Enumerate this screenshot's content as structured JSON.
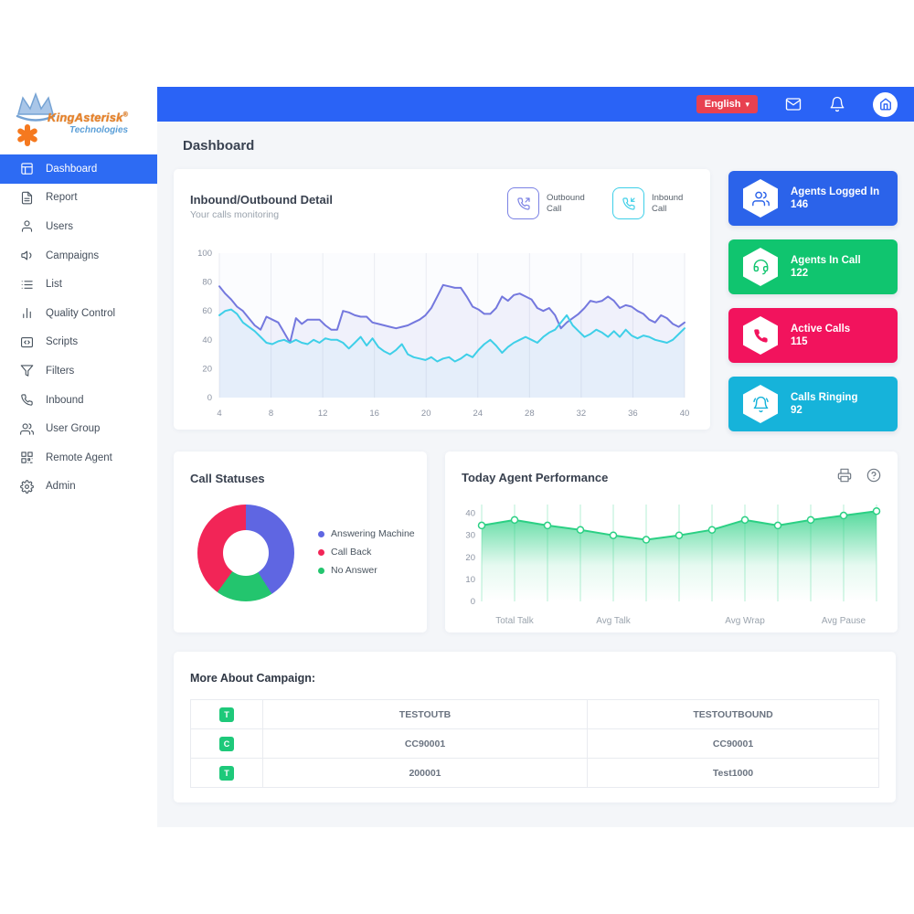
{
  "brand": {
    "name": "KingAsterisk",
    "registered": "®",
    "tagline": "Technologies"
  },
  "topbar": {
    "language_label": "English",
    "accent_red": "#e84150",
    "bar_blue": "#2a63f6"
  },
  "page": {
    "title": "Dashboard"
  },
  "sidebar": {
    "items": [
      {
        "label": "Dashboard",
        "icon": "dashboard-icon",
        "active": true
      },
      {
        "label": "Report",
        "icon": "report-icon",
        "active": false
      },
      {
        "label": "Users",
        "icon": "user-icon",
        "active": false
      },
      {
        "label": "Campaigns",
        "icon": "megaphone-icon",
        "active": false
      },
      {
        "label": "List",
        "icon": "list-icon",
        "active": false
      },
      {
        "label": "Quality Control",
        "icon": "bar-chart-icon",
        "active": false
      },
      {
        "label": "Scripts",
        "icon": "code-icon",
        "active": false
      },
      {
        "label": "Filters",
        "icon": "filter-icon",
        "active": false
      },
      {
        "label": "Inbound",
        "icon": "phone-icon",
        "active": false
      },
      {
        "label": "User Group",
        "icon": "users-icon",
        "active": false
      },
      {
        "label": "Remote Agent",
        "icon": "qr-icon",
        "active": false
      },
      {
        "label": "Admin",
        "icon": "gear-icon",
        "active": false
      }
    ]
  },
  "inout_card": {
    "title": "Inbound/Outbound Detail",
    "subtitle": "Your calls monitoring",
    "legend": [
      {
        "label": "Outbound Call",
        "color": "#7b82e4",
        "icon": "phone-outgoing-icon"
      },
      {
        "label": "Inbound Call",
        "color": "#3ecfe8",
        "icon": "phone-incoming-icon"
      }
    ]
  },
  "stat_cards": [
    {
      "label": "Agents Logged In",
      "value": "146",
      "color": "#2b63ea",
      "icon": "agents-group-icon"
    },
    {
      "label": "Agents In Call",
      "value": "122",
      "color": "#10c56f",
      "icon": "agent-headset-icon"
    },
    {
      "label": "Active Calls",
      "value": "115",
      "color": "#f2135d",
      "icon": "phone-solid-icon"
    },
    {
      "label": "Calls Ringing",
      "value": "92",
      "color": "#16b3da",
      "icon": "bell-ring-icon"
    }
  ],
  "call_statuses": {
    "title": "Call Statuses",
    "legend": [
      {
        "label": "Answering Machine",
        "color": "#5f66e2"
      },
      {
        "label": "Call Back",
        "color": "#f22557"
      },
      {
        "label": "No Answer",
        "color": "#23c56e"
      }
    ]
  },
  "performance": {
    "title": "Today Agent Performance"
  },
  "campaign_table": {
    "title": "More About Campaign:",
    "rows": [
      {
        "badge": "T",
        "col1": "TESTOUTB",
        "col2": "TESTOUTBOUND"
      },
      {
        "badge": "C",
        "col1": "CC90001",
        "col2": "CC90001"
      },
      {
        "badge": "T",
        "col1": "200001",
        "col2": "Test1000"
      }
    ]
  },
  "chart_data": [
    {
      "id": "inbound_outbound",
      "type": "line",
      "title": "Inbound/Outbound Detail",
      "xlim": [
        4,
        40
      ],
      "x_ticks": [
        4,
        8,
        12,
        16,
        20,
        24,
        28,
        32,
        36,
        40
      ],
      "ylim": [
        0,
        100
      ],
      "y_ticks": [
        0,
        20,
        40,
        60,
        80,
        100
      ],
      "grid": "vertical",
      "legend_position": "top-right",
      "series": [
        {
          "name": "Outbound Call",
          "color": "#7478de",
          "fill": "rgba(116,120,222,0.08)",
          "values": [
            77,
            72,
            68,
            63,
            60,
            55,
            50,
            47,
            56,
            54,
            52,
            45,
            38,
            55,
            51,
            54,
            54,
            54,
            50,
            47,
            47,
            60,
            59,
            57,
            56,
            56,
            52,
            51,
            50,
            49,
            48,
            49,
            50,
            52,
            54,
            57,
            62,
            70,
            78,
            77,
            76,
            76,
            70,
            63,
            61,
            58,
            58,
            62,
            70,
            67,
            71,
            72,
            70,
            68,
            62,
            60,
            62,
            57,
            48,
            52,
            55,
            58,
            62,
            67,
            66,
            67,
            70,
            67,
            62,
            64,
            63,
            60,
            58,
            54,
            52,
            57,
            55,
            51,
            49,
            52
          ]
        },
        {
          "name": "Inbound Call",
          "color": "#3ecfe8",
          "fill": "rgba(62,207,232,0.06)",
          "values": [
            57,
            60,
            61,
            58,
            52,
            49,
            46,
            42,
            38,
            37,
            39,
            40,
            38,
            40,
            38,
            37,
            40,
            38,
            41,
            40,
            40,
            38,
            34,
            38,
            42,
            36,
            41,
            35,
            32,
            30,
            33,
            37,
            30,
            28,
            27,
            26,
            28,
            25,
            27,
            28,
            25,
            27,
            30,
            28,
            33,
            37,
            40,
            36,
            31,
            35,
            38,
            40,
            42,
            40,
            38,
            42,
            45,
            47,
            52,
            57,
            50,
            46,
            42,
            44,
            47,
            45,
            42,
            46,
            42,
            47,
            43,
            41,
            43,
            42,
            40,
            39,
            38,
            40,
            44,
            48
          ]
        }
      ]
    },
    {
      "id": "agent_performance",
      "type": "area",
      "title": "Today Agent Performance",
      "ylim": [
        0,
        44
      ],
      "y_ticks": [
        0,
        10,
        20,
        30,
        40
      ],
      "color": "#2bd084",
      "values": [
        34.5,
        37,
        34.5,
        32.5,
        30,
        28,
        30,
        32.5,
        37,
        34.5,
        37,
        39,
        41
      ],
      "x_labels": [
        {
          "text": "Total Talk",
          "index": 1
        },
        {
          "text": "Avg Talk",
          "index": 4
        },
        {
          "text": "Avg Wrap",
          "index": 8
        },
        {
          "text": "Avg Pause",
          "index": 11
        }
      ]
    },
    {
      "id": "call_statuses",
      "type": "pie",
      "title": "Call Statuses",
      "donut": true,
      "slices": [
        {
          "label": "Answering Machine",
          "value": 41,
          "color": "#5f66e2"
        },
        {
          "label": "No Answer",
          "value": 19,
          "color": "#23c56e"
        },
        {
          "label": "Call Back",
          "value": 40,
          "color": "#f22557"
        }
      ]
    }
  ]
}
